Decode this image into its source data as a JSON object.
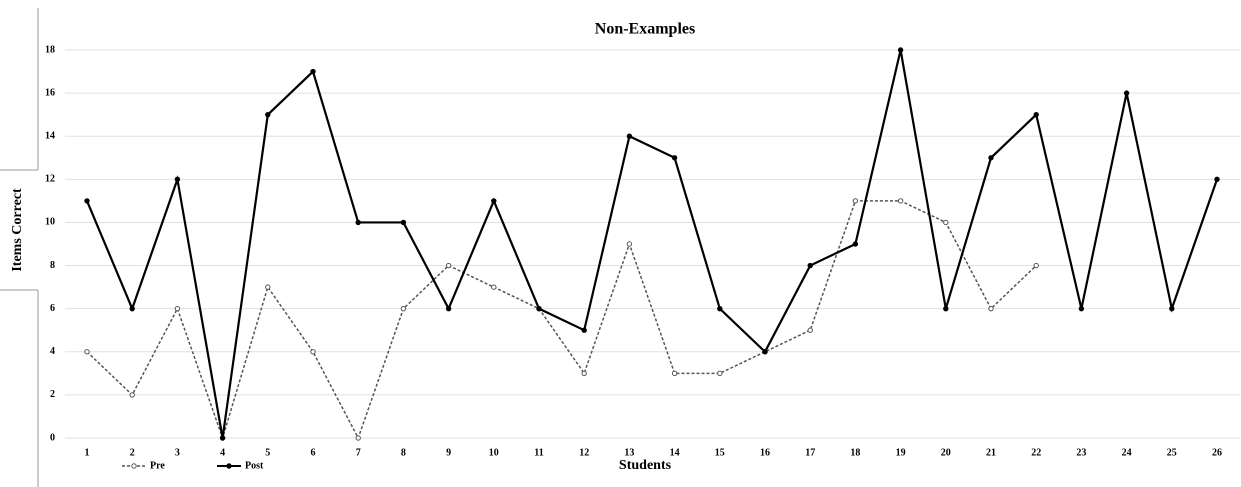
{
  "chart_data": {
    "type": "line",
    "title": "Non-Examples",
    "x_label": "Students",
    "y_label": "Items Correct",
    "categories": [
      "1",
      "2",
      "3",
      "4",
      "5",
      "6",
      "7",
      "8",
      "9",
      "10",
      "11",
      "12",
      "13",
      "14",
      "15",
      "16",
      "17",
      "18",
      "19",
      "20",
      "21",
      "22",
      "23",
      "24",
      "25",
      "26"
    ],
    "series": [
      {
        "name": "Pre",
        "color": "#555555",
        "dashed": true,
        "values": [
          4,
          2,
          6,
          0,
          7,
          4,
          0,
          6,
          8,
          7,
          6,
          3,
          9,
          3,
          3,
          4,
          5,
          11,
          11,
          10,
          6,
          8,
          null,
          null,
          null,
          null
        ]
      },
      {
        "name": "Post",
        "color": "#000000",
        "dashed": false,
        "values": [
          11,
          6,
          12,
          0,
          15,
          17,
          10,
          10,
          6,
          11,
          6,
          5,
          14,
          13,
          6,
          4,
          8,
          9,
          18,
          6,
          13,
          15,
          6,
          16,
          6,
          12
        ]
      }
    ],
    "ylim": [
      0,
      18
    ],
    "yticks": [
      0,
      2,
      4,
      6,
      8,
      10,
      12,
      14,
      16,
      18
    ],
    "grid": true,
    "legend": "bottom-left"
  }
}
